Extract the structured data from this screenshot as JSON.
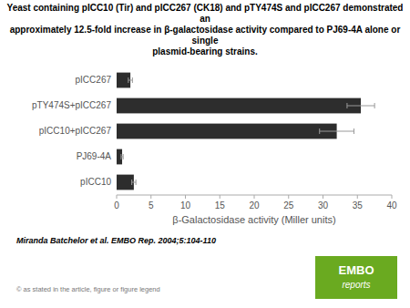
{
  "chart_data": {
    "type": "bar",
    "orientation": "horizontal",
    "title": "Yeast containing pICC10 (Tir) and pICC267 (CK18) and pTY474S and pICC267 demonstrated an\napproximately 12.5-fold increase in β-galactosidase activity compared to PJ69-4A alone or single\nplasmid-bearing strains.",
    "categories": [
      "pICC267",
      "pTY474S+pICC267",
      "pICC10+pICC267",
      "PJ69-4A",
      "pICC10"
    ],
    "values": [
      2.0,
      35.5,
      32.0,
      0.8,
      2.5
    ],
    "errors": [
      0.3,
      2.0,
      2.5,
      0.15,
      0.3
    ],
    "color": "#2d2d2d",
    "x_label": "β-Galactosidase activity (Miller units)",
    "xlim": [
      0,
      40
    ],
    "xticks": [
      0,
      5,
      10,
      15,
      20,
      25,
      30,
      35,
      40
    ],
    "grid": false,
    "annotations": [
      {
        "text": "Miranda Batchelor et al. EMBO Rep. 2004;5:104-110"
      },
      {
        "text": "© as stated in the article, figure or figure legend"
      },
      {
        "text": "EMBO\nreports",
        "color": "#6aaa20"
      }
    ]
  }
}
